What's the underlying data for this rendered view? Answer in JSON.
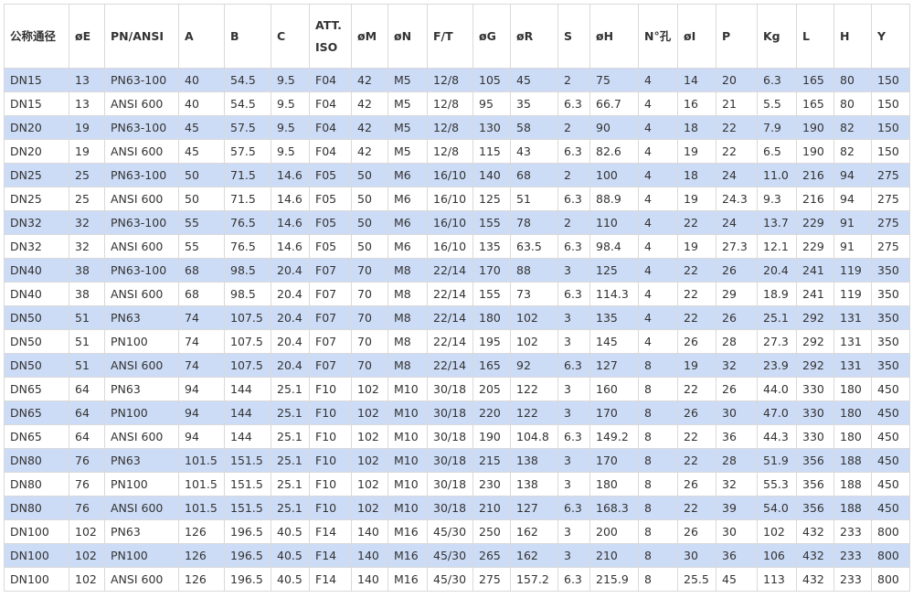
{
  "table": {
    "header": [
      "公称通径",
      "øE",
      "PN/ANSI",
      "A",
      "B",
      "C",
      "ATT. ISO",
      "øM",
      "øN",
      "F/T",
      "øG",
      "øR",
      "S",
      "øH",
      "N°孔",
      "øI",
      "P",
      "Kg",
      "L",
      "H",
      "Y"
    ],
    "rows": [
      [
        "DN15",
        "13",
        "PN63-100",
        "40",
        "54.5",
        "9.5",
        "F04",
        "42",
        "M5",
        "12/8",
        "105",
        "45",
        "2",
        "75",
        "4",
        "14",
        "20",
        "6.3",
        "165",
        "80",
        "150"
      ],
      [
        "DN15",
        "13",
        "ANSI 600",
        "40",
        "54.5",
        "9.5",
        "F04",
        "42",
        "M5",
        "12/8",
        "95",
        "35",
        "6.3",
        "66.7",
        "4",
        "16",
        "21",
        "5.5",
        "165",
        "80",
        "150"
      ],
      [
        "DN20",
        "19",
        "PN63-100",
        "45",
        "57.5",
        "9.5",
        "F04",
        "42",
        "M5",
        "12/8",
        "130",
        "58",
        "2",
        "90",
        "4",
        "18",
        "22",
        "7.9",
        "190",
        "82",
        "150"
      ],
      [
        "DN20",
        "19",
        "ANSI 600",
        "45",
        "57.5",
        "9.5",
        "F04",
        "42",
        "M5",
        "12/8",
        "115",
        "43",
        "6.3",
        "82.6",
        "4",
        "19",
        "22",
        "6.5",
        "190",
        "82",
        "150"
      ],
      [
        "DN25",
        "25",
        "PN63-100",
        "50",
        "71.5",
        "14.6",
        "F05",
        "50",
        "M6",
        "16/10",
        "140",
        "68",
        "2",
        "100",
        "4",
        "18",
        "24",
        "11.0",
        "216",
        "94",
        "275"
      ],
      [
        "DN25",
        "25",
        "ANSI 600",
        "50",
        "71.5",
        "14.6",
        "F05",
        "50",
        "M6",
        "16/10",
        "125",
        "51",
        "6.3",
        "88.9",
        "4",
        "19",
        "24.3",
        "9.3",
        "216",
        "94",
        "275"
      ],
      [
        "DN32",
        "32",
        "PN63-100",
        "55",
        "76.5",
        "14.6",
        "F05",
        "50",
        "M6",
        "16/10",
        "155",
        "78",
        "2",
        "110",
        "4",
        "22",
        "24",
        "13.7",
        "229",
        "91",
        "275"
      ],
      [
        "DN32",
        "32",
        "ANSI 600",
        "55",
        "76.5",
        "14.6",
        "F05",
        "50",
        "M6",
        "16/10",
        "135",
        "63.5",
        "6.3",
        "98.4",
        "4",
        "19",
        "27.3",
        "12.1",
        "229",
        "91",
        "275"
      ],
      [
        "DN40",
        "38",
        "PN63-100",
        "68",
        "98.5",
        "20.4",
        "F07",
        "70",
        "M8",
        "22/14",
        "170",
        "88",
        "3",
        "125",
        "4",
        "22",
        "26",
        "20.4",
        "241",
        "119",
        "350"
      ],
      [
        "DN40",
        "38",
        "ANSI 600",
        "68",
        "98.5",
        "20.4",
        "F07",
        "70",
        "M8",
        "22/14",
        "155",
        "73",
        "6.3",
        "114.3",
        "4",
        "22",
        "29",
        "18.9",
        "241",
        "119",
        "350"
      ],
      [
        "DN50",
        "51",
        "PN63",
        "74",
        "107.5",
        "20.4",
        "F07",
        "70",
        "M8",
        "22/14",
        "180",
        "102",
        "3",
        "135",
        "4",
        "22",
        "26",
        "25.1",
        "292",
        "131",
        "350"
      ],
      [
        "DN50",
        "51",
        "PN100",
        "74",
        "107.5",
        "20.4",
        "F07",
        "70",
        "M8",
        "22/14",
        "195",
        "102",
        "3",
        "145",
        "4",
        "26",
        "28",
        "27.3",
        "292",
        "131",
        "350"
      ],
      [
        "DN50",
        "51",
        "ANSI 600",
        "74",
        "107.5",
        "20.4",
        "F07",
        "70",
        "M8",
        "22/14",
        "165",
        "92",
        "6.3",
        "127",
        "8",
        "19",
        "32",
        "23.9",
        "292",
        "131",
        "350"
      ],
      [
        "DN65",
        "64",
        "PN63",
        "94",
        "144",
        "25.1",
        "F10",
        "102",
        "M10",
        "30/18",
        "205",
        "122",
        "3",
        "160",
        "8",
        "22",
        "26",
        "44.0",
        "330",
        "180",
        "450"
      ],
      [
        "DN65",
        "64",
        "PN100",
        "94",
        "144",
        "25.1",
        "F10",
        "102",
        "M10",
        "30/18",
        "220",
        "122",
        "3",
        "170",
        "8",
        "26",
        "30",
        "47.0",
        "330",
        "180",
        "450"
      ],
      [
        "DN65",
        "64",
        "ANSI 600",
        "94",
        "144",
        "25.1",
        "F10",
        "102",
        "M10",
        "30/18",
        "190",
        "104.8",
        "6.3",
        "149.2",
        "8",
        "22",
        "36",
        "44.3",
        "330",
        "180",
        "450"
      ],
      [
        "DN80",
        "76",
        "PN63",
        "101.5",
        "151.5",
        "25.1",
        "F10",
        "102",
        "M10",
        "30/18",
        "215",
        "138",
        "3",
        "170",
        "8",
        "22",
        "28",
        "51.9",
        "356",
        "188",
        "450"
      ],
      [
        "DN80",
        "76",
        "PN100",
        "101.5",
        "151.5",
        "25.1",
        "F10",
        "102",
        "M10",
        "30/18",
        "230",
        "138",
        "3",
        "180",
        "8",
        "26",
        "32",
        "55.3",
        "356",
        "188",
        "450"
      ],
      [
        "DN80",
        "76",
        "ANSI 600",
        "101.5",
        "151.5",
        "25.1",
        "F10",
        "102",
        "M10",
        "30/18",
        "210",
        "127",
        "6.3",
        "168.3",
        "8",
        "22",
        "39",
        "54.0",
        "356",
        "188",
        "450"
      ],
      [
        "DN100",
        "102",
        "PN63",
        "126",
        "196.5",
        "40.5",
        "F14",
        "140",
        "M16",
        "45/30",
        "250",
        "162",
        "3",
        "200",
        "8",
        "26",
        "30",
        "102",
        "432",
        "233",
        "800"
      ],
      [
        "DN100",
        "102",
        "PN100",
        "126",
        "196.5",
        "40.5",
        "F14",
        "140",
        "M16",
        "45/30",
        "265",
        "162",
        "3",
        "210",
        "8",
        "30",
        "36",
        "106",
        "432",
        "233",
        "800"
      ],
      [
        "DN100",
        "102",
        "ANSI 600",
        "126",
        "196.5",
        "40.5",
        "F14",
        "140",
        "M16",
        "45/30",
        "275",
        "157.2",
        "6.3",
        "215.9",
        "8",
        "25.5",
        "45",
        "113",
        "432",
        "233",
        "800"
      ]
    ]
  }
}
